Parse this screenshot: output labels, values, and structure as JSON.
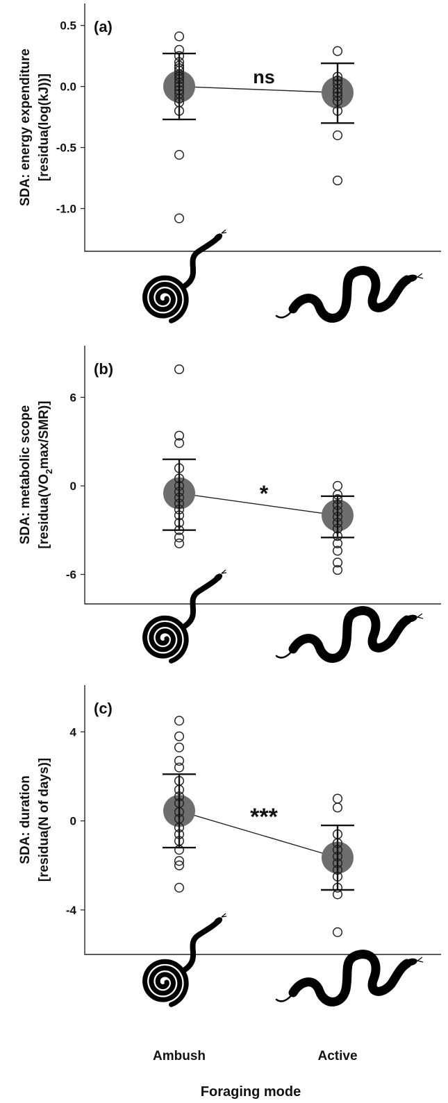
{
  "chart_data": [
    {
      "type": "scatter",
      "panel_label": "(a)",
      "ylabel": [
        "SDA: energy expenditure",
        "[residua(log(kJ))]"
      ],
      "ylim": [
        -1.35,
        0.68
      ],
      "yticks": [
        0.5,
        0.0,
        -0.5,
        -1.0
      ],
      "ytick_labels": [
        "0.5",
        "0.0",
        "-0.5",
        "-1.0"
      ],
      "categories": [
        "Ambush",
        "Active"
      ],
      "means": [
        0.0,
        -0.05
      ],
      "error": [
        [
          -0.27,
          0.27
        ],
        [
          -0.3,
          0.19
        ]
      ],
      "points": [
        [
          0.41,
          0.3,
          0.25,
          0.2,
          0.17,
          0.15,
          0.13,
          0.1,
          0.08,
          0.06,
          0.03,
          0.0,
          -0.03,
          -0.06,
          -0.1,
          -0.13,
          -0.2,
          -0.56,
          -1.08
        ],
        [
          0.29,
          0.08,
          0.05,
          0.02,
          -0.02,
          -0.05,
          -0.08,
          -0.12,
          -0.2,
          -0.4,
          -0.77
        ]
      ],
      "significance": "ns",
      "grid": false
    },
    {
      "type": "scatter",
      "panel_label": "(b)",
      "ylabel_parts": {
        "line1": "SDA: metabolic scope",
        "pre": "[residua(VO",
        "sub": "2",
        "post": "max/SMR)]"
      },
      "ylim": [
        -8.0,
        9.5
      ],
      "yticks": [
        6,
        0,
        -6
      ],
      "ytick_labels": [
        "6",
        "0",
        "-6"
      ],
      "categories": [
        "Ambush",
        "Active"
      ],
      "means": [
        -0.5,
        -2.0
      ],
      "error": [
        [
          -3.0,
          1.8
        ],
        [
          -3.5,
          -0.7
        ]
      ],
      "points": [
        [
          7.9,
          3.4,
          2.9,
          1.2,
          0.5,
          0.0,
          -0.4,
          -0.8,
          -1.2,
          -1.6,
          -2.0,
          -2.5,
          -3.0,
          -3.5,
          -3.9
        ],
        [
          0.0,
          -0.6,
          -0.9,
          -1.3,
          -1.7,
          -2.1,
          -2.5,
          -2.9,
          -3.4,
          -3.9,
          -4.4,
          -5.2,
          -5.7
        ]
      ],
      "significance": "*",
      "grid": false
    },
    {
      "type": "scatter",
      "panel_label": "(c)",
      "ylabel": [
        "SDA: duration",
        "[residua(N of days)]"
      ],
      "ylim": [
        -6.0,
        6.1
      ],
      "yticks": [
        4,
        0,
        -4
      ],
      "ytick_labels": [
        "4",
        "0",
        "-4"
      ],
      "categories": [
        "Ambush",
        "Active"
      ],
      "means": [
        0.45,
        -1.65
      ],
      "error": [
        [
          -1.2,
          2.1
        ],
        [
          -3.1,
          -0.2
        ]
      ],
      "points": [
        [
          4.5,
          3.8,
          3.3,
          2.7,
          2.4,
          1.8,
          1.4,
          1.1,
          0.8,
          0.4,
          0.1,
          -0.3,
          -0.6,
          -0.9,
          -1.3,
          -1.8,
          -2.0,
          -3.0
        ],
        [
          1.0,
          0.6,
          -0.6,
          -1.0,
          -1.3,
          -1.6,
          -1.9,
          -2.2,
          -2.5,
          -3.0,
          -3.3,
          -5.0
        ]
      ],
      "significance": "***",
      "grid": false
    }
  ],
  "x_axis": {
    "category_labels": [
      "Ambush",
      "Active"
    ],
    "xlabel": "Foraging mode"
  },
  "icons": [
    "coiled-snake-icon",
    "moving-snake-icon"
  ],
  "colors": {
    "mean_marker": "#6e6e6e",
    "ink": "#111111"
  }
}
